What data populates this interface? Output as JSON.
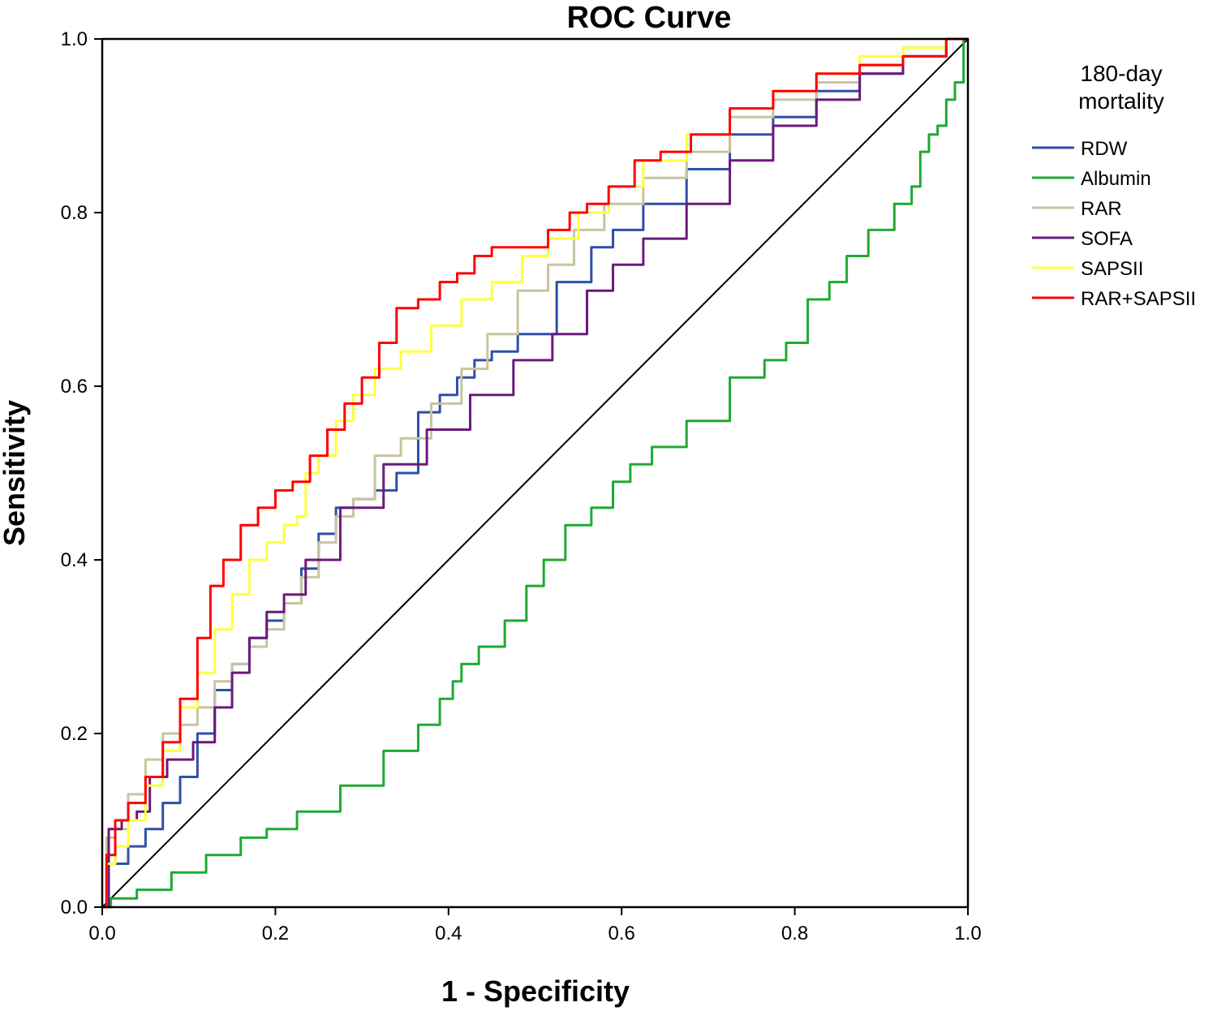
{
  "chart_data": {
    "type": "line",
    "title": "ROC Curve",
    "xlabel": "1 - Specificity",
    "ylabel": "Sensitivity",
    "xlim": [
      0,
      1
    ],
    "ylim": [
      0,
      1
    ],
    "x_ticks": [
      "0.0",
      "0.2",
      "0.4",
      "0.6",
      "0.8",
      "1.0"
    ],
    "y_ticks": [
      "0.0",
      "0.2",
      "0.4",
      "0.6",
      "0.8",
      "1.0"
    ],
    "grid": false,
    "legend": {
      "title_lines": [
        "180-day",
        "mortality"
      ],
      "placement": "right"
    },
    "reference_line": {
      "name": "Reference Line",
      "color": "#000000",
      "x": [
        0,
        1
      ],
      "y": [
        0,
        1
      ]
    },
    "series": [
      {
        "name": "RDW",
        "color": "#2f4fa8",
        "x": [
          0,
          0.01,
          0.02,
          0.04,
          0.06,
          0.08,
          0.1,
          0.12,
          0.14,
          0.16,
          0.18,
          0.2,
          0.22,
          0.24,
          0.26,
          0.28,
          0.3,
          0.33,
          0.35,
          0.38,
          0.4,
          0.42,
          0.44,
          0.46,
          0.5,
          0.55,
          0.58,
          0.6,
          0.65,
          0.7,
          0.75,
          0.8,
          0.85,
          0.9,
          0.95,
          1.0
        ],
        "y": [
          0,
          0.05,
          0.05,
          0.07,
          0.09,
          0.12,
          0.15,
          0.2,
          0.25,
          0.28,
          0.31,
          0.33,
          0.35,
          0.39,
          0.43,
          0.46,
          0.47,
          0.48,
          0.5,
          0.57,
          0.59,
          0.61,
          0.63,
          0.64,
          0.66,
          0.72,
          0.76,
          0.78,
          0.81,
          0.85,
          0.89,
          0.91,
          0.94,
          0.96,
          0.98,
          1.0
        ]
      },
      {
        "name": "Albumin",
        "color": "#1faa32",
        "x": [
          0,
          0.02,
          0.06,
          0.1,
          0.14,
          0.18,
          0.2,
          0.25,
          0.3,
          0.35,
          0.38,
          0.4,
          0.41,
          0.42,
          0.45,
          0.48,
          0.5,
          0.52,
          0.55,
          0.58,
          0.6,
          0.62,
          0.65,
          0.7,
          0.75,
          0.78,
          0.8,
          0.83,
          0.85,
          0.87,
          0.9,
          0.93,
          0.94,
          0.95,
          0.96,
          0.97,
          0.98,
          0.99,
          1.0
        ],
        "y": [
          0,
          0.01,
          0.02,
          0.04,
          0.06,
          0.08,
          0.09,
          0.11,
          0.14,
          0.18,
          0.21,
          0.24,
          0.26,
          0.28,
          0.3,
          0.33,
          0.37,
          0.4,
          0.44,
          0.46,
          0.49,
          0.51,
          0.53,
          0.56,
          0.61,
          0.63,
          0.65,
          0.7,
          0.72,
          0.75,
          0.78,
          0.81,
          0.83,
          0.87,
          0.89,
          0.9,
          0.93,
          0.95,
          1.0
        ]
      },
      {
        "name": "RAR",
        "color": "#c9c4a0",
        "x": [
          0,
          0.01,
          0.02,
          0.04,
          0.06,
          0.08,
          0.1,
          0.12,
          0.14,
          0.16,
          0.18,
          0.2,
          0.22,
          0.24,
          0.26,
          0.28,
          0.3,
          0.33,
          0.36,
          0.4,
          0.43,
          0.46,
          0.5,
          0.53,
          0.56,
          0.6,
          0.65,
          0.7,
          0.75,
          0.8,
          0.85,
          0.9,
          0.95,
          1.0
        ],
        "y": [
          0,
          0.08,
          0.09,
          0.13,
          0.17,
          0.2,
          0.21,
          0.23,
          0.26,
          0.28,
          0.3,
          0.32,
          0.35,
          0.38,
          0.42,
          0.45,
          0.47,
          0.52,
          0.54,
          0.58,
          0.62,
          0.66,
          0.71,
          0.74,
          0.78,
          0.81,
          0.84,
          0.87,
          0.91,
          0.93,
          0.95,
          0.97,
          0.99,
          1.0
        ]
      },
      {
        "name": "SOFA",
        "color": "#6a1a7a",
        "x": [
          0,
          0.015,
          0.03,
          0.05,
          0.06,
          0.09,
          0.12,
          0.14,
          0.16,
          0.18,
          0.2,
          0.22,
          0.25,
          0.3,
          0.35,
          0.4,
          0.45,
          0.5,
          0.54,
          0.58,
          0.6,
          0.65,
          0.7,
          0.75,
          0.8,
          0.85,
          0.9,
          0.95,
          1.0
        ],
        "y": [
          0,
          0.09,
          0.1,
          0.11,
          0.15,
          0.17,
          0.19,
          0.23,
          0.27,
          0.31,
          0.34,
          0.36,
          0.4,
          0.46,
          0.51,
          0.55,
          0.59,
          0.63,
          0.66,
          0.71,
          0.74,
          0.77,
          0.81,
          0.86,
          0.9,
          0.93,
          0.96,
          0.98,
          1.0
        ]
      },
      {
        "name": "SAPSII",
        "color": "#ffff40",
        "x": [
          0,
          0.01,
          0.02,
          0.04,
          0.06,
          0.08,
          0.1,
          0.12,
          0.14,
          0.16,
          0.18,
          0.2,
          0.22,
          0.23,
          0.24,
          0.26,
          0.28,
          0.3,
          0.33,
          0.36,
          0.4,
          0.43,
          0.47,
          0.5,
          0.53,
          0.57,
          0.6,
          0.65,
          0.7,
          0.75,
          0.8,
          0.85,
          0.9,
          0.95,
          1.0
        ],
        "y": [
          0,
          0.05,
          0.07,
          0.1,
          0.14,
          0.18,
          0.23,
          0.27,
          0.32,
          0.36,
          0.4,
          0.42,
          0.44,
          0.45,
          0.5,
          0.52,
          0.56,
          0.59,
          0.62,
          0.64,
          0.67,
          0.7,
          0.72,
          0.75,
          0.77,
          0.8,
          0.83,
          0.86,
          0.89,
          0.92,
          0.94,
          0.96,
          0.98,
          0.99,
          1.0
        ]
      },
      {
        "name": "RAR+SAPSII",
        "color": "#ff0000",
        "x": [
          0,
          0.01,
          0.02,
          0.04,
          0.06,
          0.08,
          0.1,
          0.12,
          0.13,
          0.15,
          0.17,
          0.19,
          0.21,
          0.23,
          0.25,
          0.27,
          0.29,
          0.31,
          0.33,
          0.35,
          0.38,
          0.4,
          0.42,
          0.44,
          0.46,
          0.5,
          0.53,
          0.55,
          0.57,
          0.6,
          0.63,
          0.66,
          0.7,
          0.75,
          0.8,
          0.85,
          0.9,
          0.95,
          1.0
        ],
        "y": [
          0,
          0.06,
          0.1,
          0.12,
          0.15,
          0.19,
          0.24,
          0.31,
          0.37,
          0.4,
          0.44,
          0.46,
          0.48,
          0.49,
          0.52,
          0.55,
          0.58,
          0.61,
          0.65,
          0.69,
          0.7,
          0.72,
          0.73,
          0.75,
          0.76,
          0.76,
          0.78,
          0.8,
          0.81,
          0.83,
          0.86,
          0.87,
          0.89,
          0.92,
          0.94,
          0.96,
          0.97,
          0.98,
          1.0
        ]
      }
    ]
  }
}
